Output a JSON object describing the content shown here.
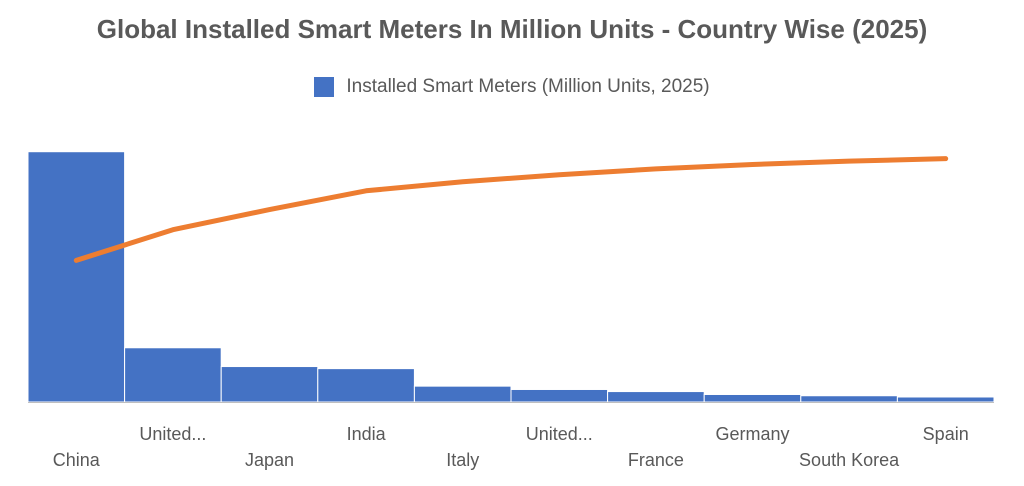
{
  "colors": {
    "bars": "#4472C4",
    "line": "#ED7D31",
    "axis": "#BFBFBF",
    "text": "#595959"
  },
  "chart_data": {
    "type": "bar",
    "title": "Global Installed Smart Meters In Million Units - Country Wise (2025)",
    "legend_position": "top",
    "grid": false,
    "categories": [
      "China",
      "United...",
      "Japan",
      "India",
      "Italy",
      "United...",
      "France",
      "Germany",
      "South Korea",
      "Spain"
    ],
    "series": [
      {
        "name": "Installed Smart Meters (Million Units, 2025)",
        "type": "bar",
        "values": [
          600,
          130,
          85,
          80,
          38,
          30,
          25,
          18,
          15,
          12
        ]
      },
      {
        "type": "line",
        "axis": "secondary",
        "values": [
          58.2,
          70.8,
          79.1,
          86.8,
          90.5,
          93.4,
          95.8,
          97.6,
          99.0,
          100.0
        ]
      }
    ],
    "ylim": [
      0,
      700
    ],
    "y2lim": [
      0,
      120
    ]
  }
}
